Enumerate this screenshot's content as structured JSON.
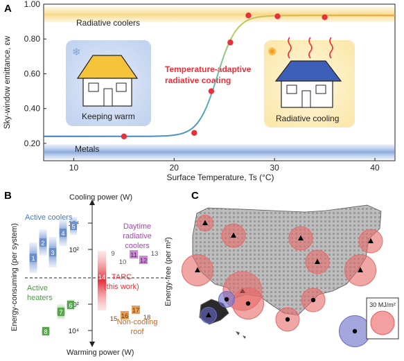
{
  "panels": {
    "a": {
      "letter": "A"
    },
    "b": {
      "letter": "B"
    },
    "c": {
      "letter": "C"
    }
  },
  "chart_data": [
    {
      "type": "line",
      "panel": "A",
      "xlabel": "Surface Temperature, Ts (°C)",
      "ylabel": "Sky-window emittance, εw",
      "xlim": [
        7,
        42
      ],
      "ylim": [
        0.1,
        1.0
      ],
      "x_ticks": [
        10,
        20,
        30,
        40
      ],
      "y_ticks": [
        0.2,
        0.4,
        0.6,
        0.8,
        1.0
      ],
      "y_tick_labels": [
        "0.20",
        "0.40",
        "0.60",
        "0.80",
        "1.00"
      ],
      "bands": [
        {
          "label": "Radiative coolers",
          "y": 0.94,
          "color": "#f7d98a"
        },
        {
          "label": "Metals",
          "y": 0.15,
          "color": "#8aa9dc"
        }
      ],
      "series": [
        {
          "name": "Temperature-adaptive radiative coating",
          "points": [
            [
              15,
              0.24
            ],
            [
              22,
              0.26
            ],
            [
              23.7,
              0.5
            ],
            [
              25.6,
              0.78
            ],
            [
              27.4,
              0.935
            ],
            [
              30.3,
              0.93
            ],
            [
              35,
              0.925
            ]
          ]
        }
      ],
      "annotations": {
        "tarc": [
          "Temperature-adaptive",
          "radiative coating"
        ],
        "keeping_warm": "Keeping warm",
        "radiative_cooling": "Radiative cooling"
      },
      "grid": false
    },
    {
      "type": "scatter",
      "panel": "B",
      "top_axis_label": "Cooling power (W)",
      "bottom_axis_label": "Warming power (W)",
      "left_upper_label": "Energy-consuming (per system)",
      "right_upper_label": "Energy-free (per m²)",
      "ticks": [
        "10⁴",
        "10²",
        "10²",
        "10⁴"
      ],
      "groups": [
        {
          "label": "Active coolers",
          "color": "#6b8fc9",
          "items": [
            "1",
            "2",
            "3",
            "4",
            "5"
          ]
        },
        {
          "label": "Active heaters",
          "color": "#5aa650",
          "items": [
            "6",
            "7",
            "8"
          ]
        },
        {
          "label": "Daytime radiative coolers",
          "color": "#9b4fa6",
          "items": [
            "9",
            "10",
            "11",
            "12",
            "13"
          ]
        },
        {
          "label": "TARC (this work)",
          "number": "14",
          "color": "#e8303a",
          "items": [
            "14"
          ]
        },
        {
          "label": "Non-cooling roof",
          "color": "#c8641e",
          "items": [
            "15",
            "16",
            "17",
            "18"
          ]
        }
      ],
      "daytime_label_lines": [
        "Daytime",
        "radiative",
        "coolers"
      ],
      "tarc_label_lines": [
        "TARC",
        "(this work)"
      ],
      "roof_label_lines": [
        "Non-cooling",
        "roof"
      ],
      "heaters_label_lines": [
        "Active",
        "heaters"
      ]
    },
    {
      "type": "map",
      "panel": "C",
      "legend": "30 MJ/m²",
      "markers": [
        {
          "kind": "triangle",
          "fill": "#e86a6a",
          "size": 1
        },
        {
          "kind": "triangle",
          "fill": "#e86a6a",
          "size": 2
        },
        {
          "kind": "triangle",
          "fill": "#e86a6a",
          "size": 2
        },
        {
          "kind": "triangle",
          "fill": "#e86a6a",
          "size": 2
        },
        {
          "kind": "triangle",
          "fill": "#e86a6a",
          "size": 2
        },
        {
          "kind": "triangle",
          "fill": "#e86a6a",
          "size": 3
        },
        {
          "kind": "triangle",
          "fill": "#e86a6a",
          "size": 3
        },
        {
          "kind": "triangle",
          "fill": "#e86a6a",
          "size": 4
        },
        {
          "kind": "dot",
          "fill": "#e86a6a",
          "size": 3
        },
        {
          "kind": "dot",
          "fill": "#e86a6a",
          "size": 2
        },
        {
          "kind": "dot",
          "fill": "#e86a6a",
          "size": 2
        },
        {
          "kind": "dot",
          "fill": "#6b6bc8",
          "size": 1
        },
        {
          "kind": "dot",
          "fill": "#6b6bc8",
          "size": 3
        },
        {
          "kind": "triangle",
          "fill": "#6b6bc8",
          "size": 1
        }
      ]
    }
  ]
}
